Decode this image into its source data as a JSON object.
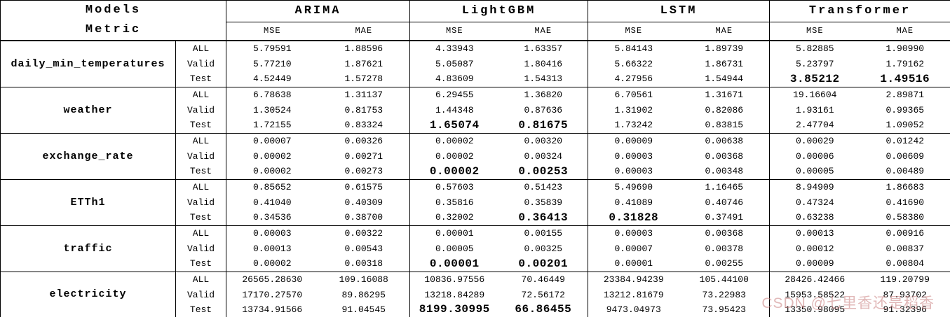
{
  "header": {
    "models_label": "Models",
    "metric_label": "Metric",
    "models": [
      "ARIMA",
      "LightGBM",
      "LSTM",
      "Transformer"
    ],
    "metrics": [
      "MSE",
      "MAE"
    ]
  },
  "datasets": [
    {
      "name": "daily_min_temperatures",
      "rows": [
        {
          "split": "ALL",
          "values": [
            "5.79591",
            "1.88596",
            "4.33943",
            "1.63357",
            "5.84143",
            "1.89739",
            "5.82885",
            "1.90990"
          ],
          "bold": []
        },
        {
          "split": "Valid",
          "values": [
            "5.77210",
            "1.87621",
            "5.05087",
            "1.80416",
            "5.66322",
            "1.86731",
            "5.23797",
            "1.79162"
          ],
          "bold": []
        },
        {
          "split": "Test",
          "values": [
            "4.52449",
            "1.57278",
            "4.83609",
            "1.54313",
            "4.27956",
            "1.54944",
            "3.85212",
            "1.49516"
          ],
          "bold": [
            6,
            7
          ]
        }
      ]
    },
    {
      "name": "weather",
      "rows": [
        {
          "split": "ALL",
          "values": [
            "6.78638",
            "1.31137",
            "6.29455",
            "1.36820",
            "6.70561",
            "1.31671",
            "19.16604",
            "2.89871"
          ],
          "bold": []
        },
        {
          "split": "Valid",
          "values": [
            "1.30524",
            "0.81753",
            "1.44348",
            "0.87636",
            "1.31902",
            "0.82086",
            "1.93161",
            "0.99365"
          ],
          "bold": []
        },
        {
          "split": "Test",
          "values": [
            "1.72155",
            "0.83324",
            "1.65074",
            "0.81675",
            "1.73242",
            "0.83815",
            "2.47704",
            "1.09052"
          ],
          "bold": [
            2,
            3
          ]
        }
      ]
    },
    {
      "name": "exchange_rate",
      "rows": [
        {
          "split": "ALL",
          "values": [
            "0.00007",
            "0.00326",
            "0.00002",
            "0.00320",
            "0.00009",
            "0.00638",
            "0.00029",
            "0.01242"
          ],
          "bold": []
        },
        {
          "split": "Valid",
          "values": [
            "0.00002",
            "0.00271",
            "0.00002",
            "0.00324",
            "0.00003",
            "0.00368",
            "0.00006",
            "0.00609"
          ],
          "bold": []
        },
        {
          "split": "Test",
          "values": [
            "0.00002",
            "0.00273",
            "0.00002",
            "0.00253",
            "0.00003",
            "0.00348",
            "0.00005",
            "0.00489"
          ],
          "bold": [
            2,
            3
          ]
        }
      ]
    },
    {
      "name": "ETTh1",
      "rows": [
        {
          "split": "ALL",
          "values": [
            "0.85652",
            "0.61575",
            "0.57603",
            "0.51423",
            "5.49690",
            "1.16465",
            "8.94909",
            "1.86683"
          ],
          "bold": []
        },
        {
          "split": "Valid",
          "values": [
            "0.41040",
            "0.40309",
            "0.35816",
            "0.35839",
            "0.41089",
            "0.40746",
            "0.47324",
            "0.41690"
          ],
          "bold": []
        },
        {
          "split": "Test",
          "values": [
            "0.34536",
            "0.38700",
            "0.32002",
            "0.36413",
            "0.31828",
            "0.37491",
            "0.63238",
            "0.58380"
          ],
          "bold": [
            3,
            4
          ]
        }
      ]
    },
    {
      "name": "traffic",
      "rows": [
        {
          "split": "ALL",
          "values": [
            "0.00003",
            "0.00322",
            "0.00001",
            "0.00155",
            "0.00003",
            "0.00368",
            "0.00013",
            "0.00916"
          ],
          "bold": []
        },
        {
          "split": "Valid",
          "values": [
            "0.00013",
            "0.00543",
            "0.00005",
            "0.00325",
            "0.00007",
            "0.00378",
            "0.00012",
            "0.00837"
          ],
          "bold": []
        },
        {
          "split": "Test",
          "values": [
            "0.00002",
            "0.00318",
            "0.00001",
            "0.00201",
            "0.00001",
            "0.00255",
            "0.00009",
            "0.00804"
          ],
          "bold": [
            2,
            3
          ]
        }
      ]
    },
    {
      "name": "electricity",
      "rows": [
        {
          "split": "ALL",
          "values": [
            "26565.28630",
            "109.16088",
            "10836.97556",
            "70.46449",
            "23384.94239",
            "105.44100",
            "28426.42466",
            "119.20799"
          ],
          "bold": []
        },
        {
          "split": "Valid",
          "values": [
            "17170.27570",
            "89.86295",
            "13218.84289",
            "72.56172",
            "13212.81679",
            "73.22983",
            "15953.58522",
            "87.93702"
          ],
          "bold": []
        },
        {
          "split": "Test",
          "values": [
            "13734.91566",
            "91.04545",
            "8199.30995",
            "66.86455",
            "9473.04973",
            "73.95423",
            "13350.98095",
            "91.32396"
          ],
          "bold": [
            2,
            3
          ]
        }
      ]
    }
  ],
  "watermark": {
    "text": "CSDN @七里香还是稻香",
    "color": "#c97f7f"
  }
}
